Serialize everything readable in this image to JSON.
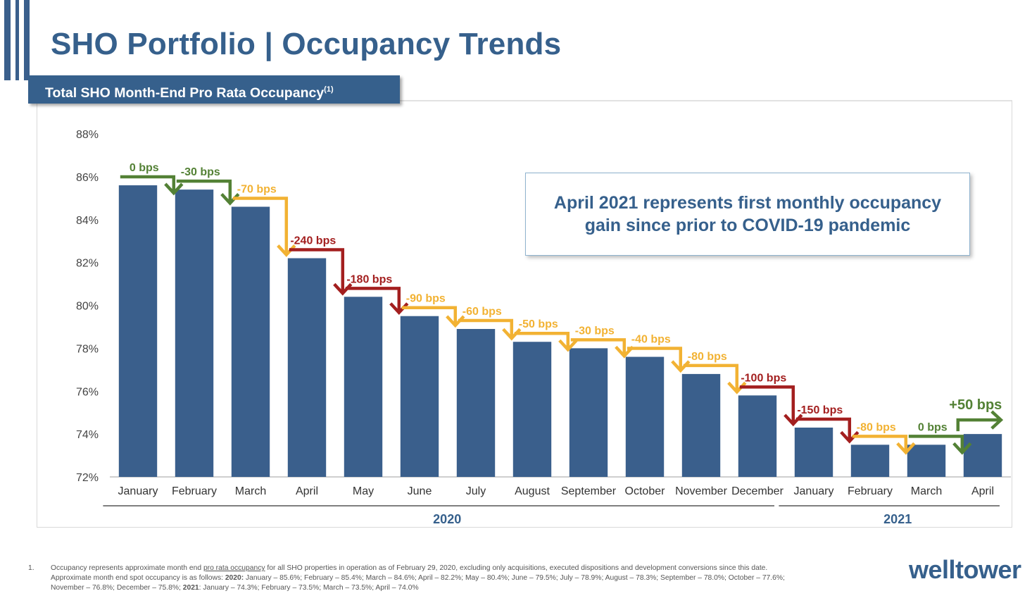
{
  "page": {
    "title": "SHO Portfolio | Occupancy Trends",
    "subtitle": "Total SHO Month-End Pro Rata Occupancy",
    "subtitle_sup": "(1)",
    "callout": "April 2021 represents first monthly occupancy gain since prior to COVID-19 pandemic",
    "logo": "welltower",
    "colors": {
      "brand": "#36608c",
      "bar": "#3a5f8c",
      "green": "#538135",
      "yellow": "#f2b233",
      "red": "#a31f1f"
    }
  },
  "footnote": {
    "number": "1.",
    "line1_a": "Occupancy represents approximate month end ",
    "line1_link": "pro rata occupancy",
    "line1_b": " for all SHO properties in operation as of February 29, 2020, excluding only acquisitions, executed dispositions and development conversions since this date.",
    "line2_a": "Approximate month end spot occupancy is as follows:  ",
    "year_2020": "2020:",
    "line2_b": " January – 85.6%; February – 85.4%; March – 84.6%; April – 82.2%; May – 80.4%; June – 79.5%; July – 78.9%; August – 78.3%; September – 78.0%; October – 77.6%;",
    "line3_a": "November – 76.8%; December – 75.8%; ",
    "year_2021": "2021",
    "line3_b": ": January – 74.3%; February – 73.5%; March – 73.5%; April – 74.0%"
  },
  "chart_data": {
    "type": "bar",
    "ylim": [
      72,
      88
    ],
    "yticks": [
      "72%",
      "74%",
      "76%",
      "78%",
      "80%",
      "82%",
      "84%",
      "86%",
      "88%"
    ],
    "categories": [
      "January",
      "February",
      "March",
      "April",
      "May",
      "June",
      "July",
      "August",
      "September",
      "October",
      "November",
      "December",
      "January",
      "February",
      "March",
      "April"
    ],
    "values": [
      85.6,
      85.4,
      84.6,
      82.2,
      80.4,
      79.5,
      78.9,
      78.3,
      78.0,
      77.6,
      76.8,
      75.8,
      74.3,
      73.5,
      73.5,
      74.0
    ],
    "groups": [
      {
        "label": "2020",
        "start": 0,
        "end": 11
      },
      {
        "label": "2021",
        "start": 12,
        "end": 15
      }
    ],
    "changes": [
      {
        "label": "0 bps",
        "color": "green"
      },
      {
        "label": "-30 bps",
        "color": "green"
      },
      {
        "label": "-70 bps",
        "color": "yellow"
      },
      {
        "label": "-240 bps",
        "color": "red"
      },
      {
        "label": "-180 bps",
        "color": "red"
      },
      {
        "label": "-90 bps",
        "color": "yellow"
      },
      {
        "label": "-60 bps",
        "color": "yellow"
      },
      {
        "label": "-50 bps",
        "color": "yellow"
      },
      {
        "label": "-30 bps",
        "color": "yellow"
      },
      {
        "label": "-40 bps",
        "color": "yellow"
      },
      {
        "label": "-80 bps",
        "color": "yellow"
      },
      {
        "label": "-100 bps",
        "color": "red"
      },
      {
        "label": "-150 bps",
        "color": "red"
      },
      {
        "label": "-80 bps",
        "color": "yellow"
      },
      {
        "label": "0 bps",
        "color": "green"
      },
      {
        "label": "+50 bps",
        "color": "green"
      }
    ]
  }
}
